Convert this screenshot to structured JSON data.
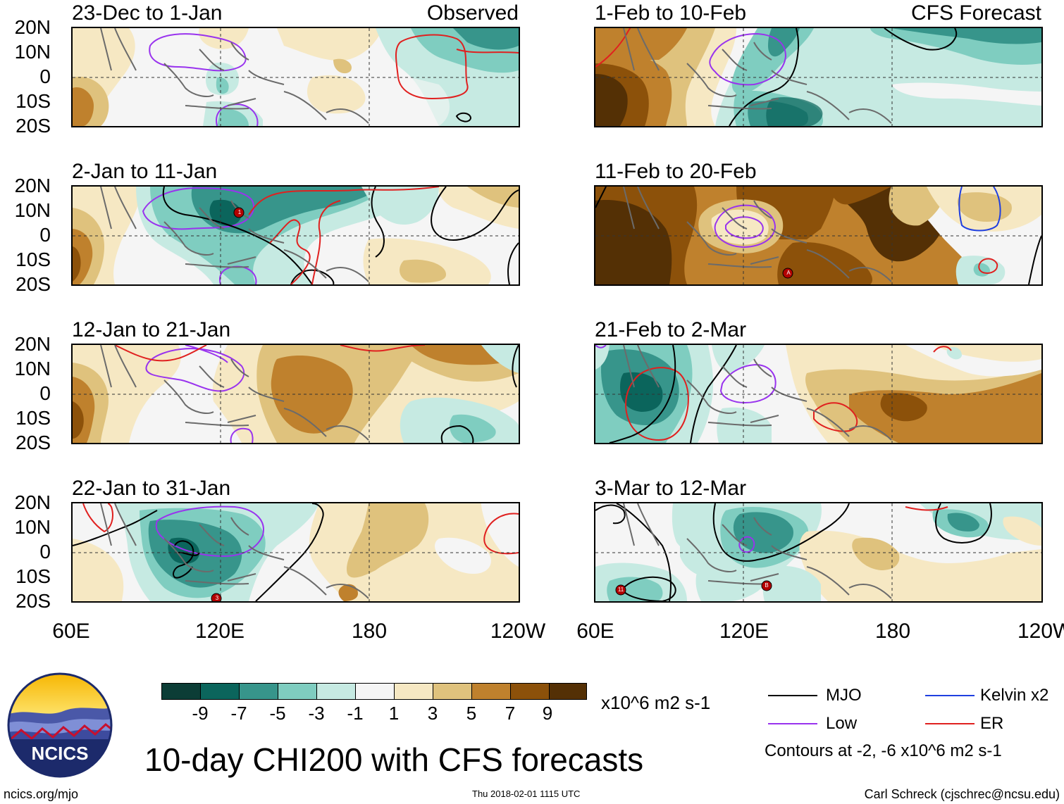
{
  "header": {
    "observed_label": "Observed",
    "forecast_label": "CFS Forecast"
  },
  "lat_labels": [
    "20N",
    "10N",
    "0",
    "10S",
    "20S"
  ],
  "lon_labels": [
    "60E",
    "120E",
    "180",
    "120W"
  ],
  "panels": {
    "p1": {
      "title": "23-Dec to 1-Jan"
    },
    "p2": {
      "title": "2-Jan to 11-Jan",
      "storm": "1"
    },
    "p3": {
      "title": "12-Jan to 21-Jan"
    },
    "p4": {
      "title": "22-Jan to 31-Jan",
      "storm": "3"
    },
    "p5": {
      "title": "1-Feb to 10-Feb"
    },
    "p6": {
      "title": "11-Feb to 20-Feb",
      "storm": "A"
    },
    "p7": {
      "title": "21-Feb to 2-Mar"
    },
    "p8": {
      "title": "3-Mar to 12-Mar",
      "storm": "11",
      "storm2": "B"
    }
  },
  "colorbar": {
    "colors": [
      "#0c3d36",
      "#0b655c",
      "#37958b",
      "#7fcdc0",
      "#c6eae2",
      "#f5f5f5",
      "#f6e8c3",
      "#dfc27d",
      "#bf812d",
      "#8c510a",
      "#543005"
    ],
    "labels": [
      "-9",
      "-7",
      "-5",
      "-3",
      "-1",
      "1",
      "3",
      "5",
      "7",
      "9"
    ],
    "units": "x10^6 m2 s-1"
  },
  "colors": {
    "mjo": "#000000",
    "low": "#9933ee",
    "kelvin": "#1f3fe0",
    "er": "#e0201f",
    "coast": "#6b6b6b"
  },
  "legend": {
    "mjo": "MJO",
    "low": "Low",
    "kelvin": "Kelvin x2",
    "er": "ER",
    "contours": "Contours at -2, -6 x10^6 m2 s-1"
  },
  "main_title": "10-day CHI200 with CFS forecasts",
  "logo_text": "NCICS",
  "footer": {
    "url": "ncics.org/mjo",
    "timestamp": "Thu 2018-02-01 1115 UTC",
    "author": "Carl Schreck (cjschrec@ncsu.edu)"
  }
}
